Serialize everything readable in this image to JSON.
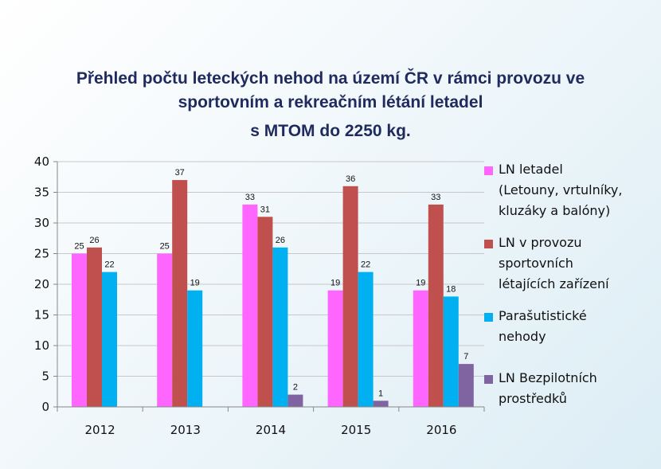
{
  "title_lines": [
    "Přehled počtu leteckých nehod na území ČR v rámci provozu ve",
    "sportovním a rekreačním létání letadel",
    "s MTOM do 2250 kg."
  ],
  "chart_data": {
    "type": "bar",
    "title": "Přehled počtu leteckých nehod na území ČR v rámci provozu ve sportovním a rekreačním létání letadel s MTOM do 2250 kg.",
    "categories": [
      "2012",
      "2013",
      "2014",
      "2015",
      "2016"
    ],
    "series": [
      {
        "name": "LN letadel (Letouny, vrtulníky, kluzáky a balóny)",
        "label_lines": [
          "LN letadel",
          "(Letouny, vrtulníky,",
          "kluzáky a balóny)"
        ],
        "color": "#ff66ff",
        "values": [
          25,
          25,
          33,
          19,
          19
        ]
      },
      {
        "name": "LN v provozu sportovních létajících zařízení",
        "label_lines": [
          "LN v provozu",
          "sportovních",
          "létajících zařízení"
        ],
        "color": "#c0504d",
        "values": [
          26,
          37,
          31,
          36,
          33
        ]
      },
      {
        "name": "Parašutistické nehody",
        "label_lines": [
          "Parašutistické",
          "nehody"
        ],
        "color": "#00b0f0",
        "values": [
          22,
          19,
          26,
          22,
          18
        ]
      },
      {
        "name": "LN Bezpilotních prostředků",
        "label_lines": [
          "LN Bezpilotních",
          "prostředků"
        ],
        "color": "#8064a2",
        "values": [
          null,
          null,
          2,
          1,
          7
        ]
      }
    ],
    "ylim": [
      0,
      40
    ],
    "yticks": [
      0,
      5,
      10,
      15,
      20,
      25,
      30,
      35,
      40
    ],
    "grid": true,
    "legend_position": "right",
    "data_labels": true
  }
}
